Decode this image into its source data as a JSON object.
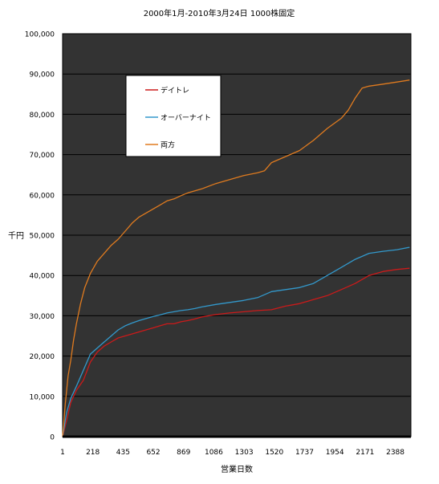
{
  "chart_data": {
    "type": "line",
    "title": "2000年1月-2010年3月24日 1000株固定",
    "xlabel": "営業日数",
    "ylabel": "千円",
    "ylim": [
      0,
      100000
    ],
    "yticks": [
      0,
      10000,
      20000,
      30000,
      40000,
      50000,
      60000,
      70000,
      80000,
      90000,
      100000
    ],
    "ytick_labels": [
      "0",
      "10,000",
      "20,000",
      "30,000",
      "40,000",
      "50,000",
      "60,000",
      "70,000",
      "80,000",
      "90,000",
      "100,000"
    ],
    "xlim": [
      1,
      2500
    ],
    "xticks": [
      1,
      218,
      435,
      652,
      869,
      1086,
      1303,
      1520,
      1737,
      1954,
      2171,
      2388
    ],
    "xtick_labels": [
      "1",
      "218",
      "435",
      "652",
      "869",
      "1086",
      "1303",
      "1520",
      "1737",
      "1954",
      "2171",
      "2388"
    ],
    "grid": true,
    "legend_position": "top-left",
    "series": [
      {
        "name": "デイトレ",
        "color": "#cc1a1a",
        "x": [
          1,
          30,
          60,
          100,
          150,
          200,
          250,
          300,
          350,
          400,
          450,
          500,
          550,
          600,
          650,
          700,
          750,
          800,
          850,
          900,
          950,
          1000,
          1100,
          1200,
          1300,
          1400,
          1500,
          1600,
          1700,
          1800,
          1900,
          2000,
          2100,
          2200,
          2300,
          2400,
          2490
        ],
        "y": [
          0,
          4000,
          8500,
          11500,
          14000,
          18500,
          21000,
          22500,
          23500,
          24500,
          25000,
          25500,
          26000,
          26500,
          27000,
          27500,
          28000,
          28000,
          28500,
          28800,
          29200,
          29700,
          30300,
          30700,
          31000,
          31300,
          31500,
          32400,
          33000,
          34000,
          35000,
          36500,
          38000,
          40000,
          41000,
          41500,
          41800
        ]
      },
      {
        "name": "オーバーナイト",
        "color": "#3399cc",
        "x": [
          1,
          30,
          60,
          100,
          150,
          200,
          250,
          300,
          350,
          400,
          450,
          500,
          550,
          600,
          650,
          700,
          750,
          800,
          850,
          900,
          950,
          1000,
          1100,
          1200,
          1300,
          1400,
          1500,
          1600,
          1700,
          1800,
          1900,
          2000,
          2100,
          2200,
          2300,
          2400,
          2490
        ],
        "y": [
          0,
          6000,
          9500,
          12500,
          16500,
          20500,
          22000,
          23500,
          25000,
          26500,
          27500,
          28200,
          28800,
          29300,
          29800,
          30200,
          30700,
          31000,
          31300,
          31500,
          31800,
          32200,
          32800,
          33300,
          33800,
          34500,
          36000,
          36500,
          37000,
          38000,
          40000,
          42000,
          44000,
          45500,
          46000,
          46400,
          47000
        ]
      },
      {
        "name": "両方",
        "color": "#e07b1f",
        "x": [
          1,
          20,
          40,
          60,
          80,
          100,
          130,
          160,
          200,
          250,
          300,
          350,
          400,
          450,
          500,
          550,
          600,
          650,
          700,
          750,
          800,
          850,
          900,
          1000,
          1100,
          1200,
          1300,
          1400,
          1450,
          1500,
          1600,
          1700,
          1800,
          1900,
          2000,
          2050,
          2100,
          2150,
          2200,
          2300,
          2400,
          2490
        ],
        "y": [
          0,
          8000,
          15000,
          19000,
          24000,
          28000,
          33000,
          37000,
          40500,
          43500,
          45500,
          47500,
          49000,
          51000,
          53000,
          54500,
          55500,
          56500,
          57500,
          58500,
          59000,
          59800,
          60500,
          61500,
          62800,
          63800,
          64800,
          65500,
          66000,
          68000,
          69500,
          71000,
          73500,
          76500,
          79000,
          81000,
          84000,
          86500,
          87000,
          87500,
          88000,
          88500
        ]
      }
    ]
  }
}
